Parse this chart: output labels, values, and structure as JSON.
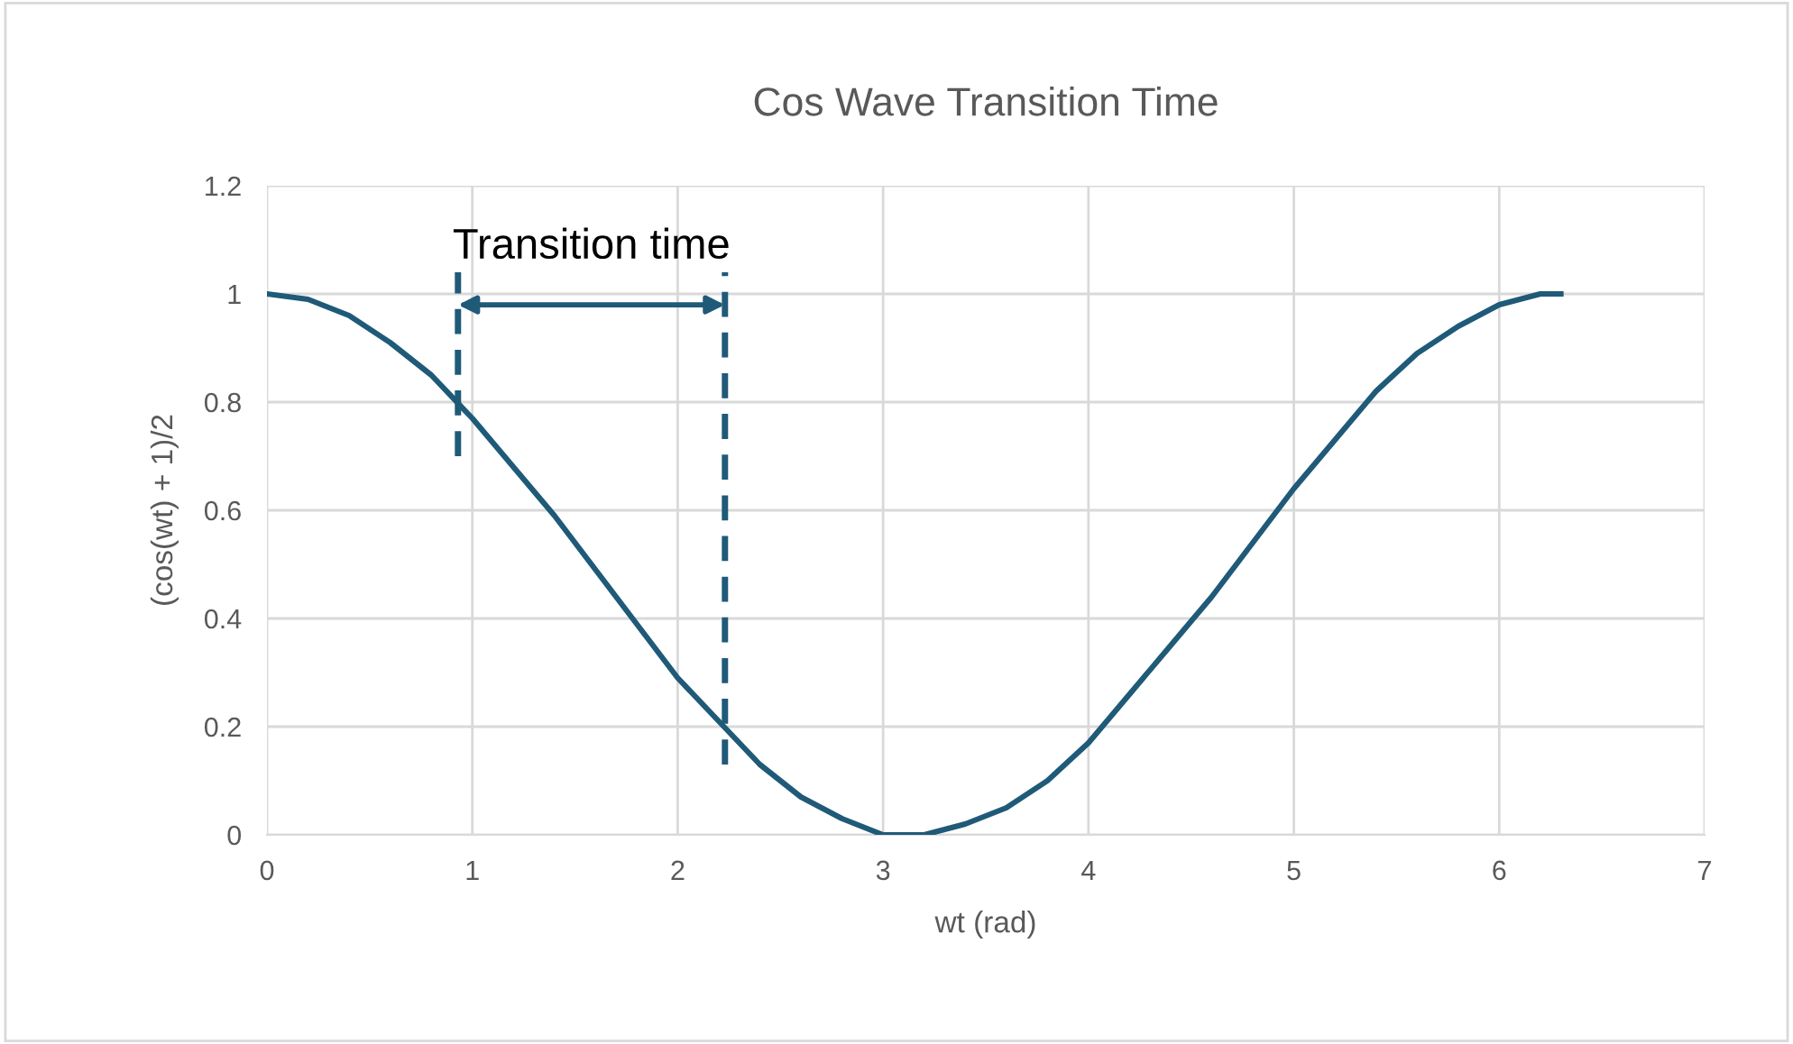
{
  "chart_data": {
    "type": "line",
    "title": "Cos Wave Transition Time",
    "xlabel": "wt (rad)",
    "ylabel": "(cos(wt) + 1)/2",
    "series": [
      {
        "color": "#1f5a78",
        "x": [
          0,
          0.2,
          0.4,
          0.6,
          0.8,
          1.0,
          1.2,
          1.4,
          1.6,
          1.8,
          2.0,
          2.2,
          2.4,
          2.6,
          2.8,
          3.0,
          3.2,
          3.4,
          3.6,
          3.8,
          4.0,
          4.2,
          4.4,
          4.6,
          4.8,
          5.0,
          5.2,
          5.4,
          5.6,
          5.8,
          6.0,
          6.2,
          6.3
        ],
        "values": [
          1.0,
          0.99,
          0.96,
          0.91,
          0.85,
          0.77,
          0.68,
          0.59,
          0.49,
          0.39,
          0.29,
          0.21,
          0.13,
          0.07,
          0.03,
          0.0,
          0.0,
          0.02,
          0.05,
          0.1,
          0.17,
          0.26,
          0.35,
          0.44,
          0.54,
          0.64,
          0.73,
          0.82,
          0.89,
          0.94,
          0.98,
          1.0,
          1.0
        ]
      },
      {
        "color": "#1f5a78",
        "x": [
          0.93,
          0.93
        ],
        "values": [
          0.7,
          1.04
        ],
        "line_style": "dashed"
      },
      {
        "color": "#1f5a78",
        "x": [
          2.23,
          2.23
        ],
        "values": [
          0.13,
          1.04
        ],
        "line_style": "dashed"
      }
    ],
    "annotations": [
      "Transition time"
    ],
    "xlim": [
      0,
      7
    ],
    "xticks": [
      0,
      1,
      2,
      3,
      4,
      5,
      6,
      7
    ],
    "ylim": [
      0,
      1.2
    ],
    "yticks": [
      0,
      0.2,
      0.4,
      0.6,
      0.8,
      1,
      1.2
    ],
    "grid": true,
    "marker": "none"
  }
}
